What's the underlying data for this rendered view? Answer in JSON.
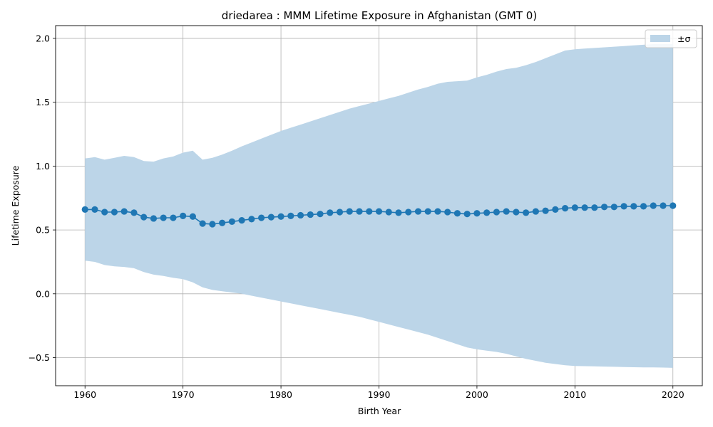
{
  "chart_data": {
    "type": "line",
    "title": "driedarea : MMM Lifetime Exposure in Afghanistan (GMT 0)",
    "xlabel": "Birth Year",
    "ylabel": "Lifetime Exposure",
    "xlim": [
      1957,
      2023
    ],
    "ylim": [
      -0.72,
      2.1
    ],
    "xticks": [
      1960,
      1970,
      1980,
      1990,
      2000,
      2010,
      2020
    ],
    "yticks": [
      -0.5,
      0.0,
      0.5,
      1.0,
      1.5,
      2.0
    ],
    "ytick_labels": [
      "−0.5",
      "0.0",
      "0.5",
      "1.0",
      "1.5",
      "2.0"
    ],
    "grid": true,
    "legend": {
      "position": "top-right",
      "entries": [
        {
          "label": "±σ",
          "color": "#bcd5e8"
        }
      ]
    },
    "colors": {
      "line": "#1f77b4",
      "band": "#bcd5e8",
      "grid": "#b0b0b0"
    },
    "x": [
      1960,
      1961,
      1962,
      1963,
      1964,
      1965,
      1966,
      1967,
      1968,
      1969,
      1970,
      1971,
      1972,
      1973,
      1974,
      1975,
      1976,
      1977,
      1978,
      1979,
      1980,
      1981,
      1982,
      1983,
      1984,
      1985,
      1986,
      1987,
      1988,
      1989,
      1990,
      1991,
      1992,
      1993,
      1994,
      1995,
      1996,
      1997,
      1998,
      1999,
      2000,
      2001,
      2002,
      2003,
      2004,
      2005,
      2006,
      2007,
      2008,
      2009,
      2010,
      2011,
      2012,
      2013,
      2014,
      2015,
      2016,
      2017,
      2018,
      2019,
      2020
    ],
    "series": [
      {
        "name": "",
        "mean": [
          0.66,
          0.66,
          0.64,
          0.64,
          0.645,
          0.635,
          0.6,
          0.59,
          0.595,
          0.595,
          0.61,
          0.605,
          0.55,
          0.545,
          0.555,
          0.565,
          0.575,
          0.585,
          0.595,
          0.6,
          0.605,
          0.61,
          0.615,
          0.62,
          0.625,
          0.635,
          0.64,
          0.645,
          0.645,
          0.645,
          0.645,
          0.64,
          0.635,
          0.64,
          0.645,
          0.645,
          0.645,
          0.64,
          0.63,
          0.625,
          0.63,
          0.635,
          0.64,
          0.645,
          0.64,
          0.635,
          0.645,
          0.65,
          0.66,
          0.67,
          0.675,
          0.675,
          0.675,
          0.68,
          0.68,
          0.685,
          0.685,
          0.685,
          0.69,
          0.69,
          0.69
        ],
        "upper": [
          1.06,
          1.07,
          1.05,
          1.065,
          1.08,
          1.07,
          1.04,
          1.035,
          1.06,
          1.075,
          1.105,
          1.12,
          1.05,
          1.065,
          1.09,
          1.12,
          1.155,
          1.185,
          1.215,
          1.245,
          1.275,
          1.3,
          1.325,
          1.35,
          1.375,
          1.4,
          1.425,
          1.45,
          1.47,
          1.49,
          1.51,
          1.53,
          1.55,
          1.575,
          1.6,
          1.62,
          1.645,
          1.66,
          1.665,
          1.67,
          1.695,
          1.715,
          1.74,
          1.76,
          1.77,
          1.79,
          1.815,
          1.845,
          1.875,
          1.905,
          1.915,
          1.92,
          1.925,
          1.93,
          1.935,
          1.94,
          1.945,
          1.95,
          1.955,
          1.955,
          1.955
        ],
        "lower": [
          0.26,
          0.25,
          0.225,
          0.215,
          0.21,
          0.2,
          0.17,
          0.15,
          0.14,
          0.125,
          0.115,
          0.09,
          0.05,
          0.03,
          0.02,
          0.01,
          0.0,
          -0.015,
          -0.03,
          -0.045,
          -0.06,
          -0.075,
          -0.09,
          -0.105,
          -0.12,
          -0.135,
          -0.15,
          -0.165,
          -0.18,
          -0.2,
          -0.22,
          -0.24,
          -0.26,
          -0.28,
          -0.3,
          -0.32,
          -0.345,
          -0.37,
          -0.395,
          -0.42,
          -0.435,
          -0.445,
          -0.455,
          -0.47,
          -0.49,
          -0.51,
          -0.525,
          -0.54,
          -0.55,
          -0.56,
          -0.565,
          -0.567,
          -0.568,
          -0.57,
          -0.572,
          -0.574,
          -0.575,
          -0.576,
          -0.577,
          -0.578,
          -0.58
        ]
      }
    ]
  }
}
